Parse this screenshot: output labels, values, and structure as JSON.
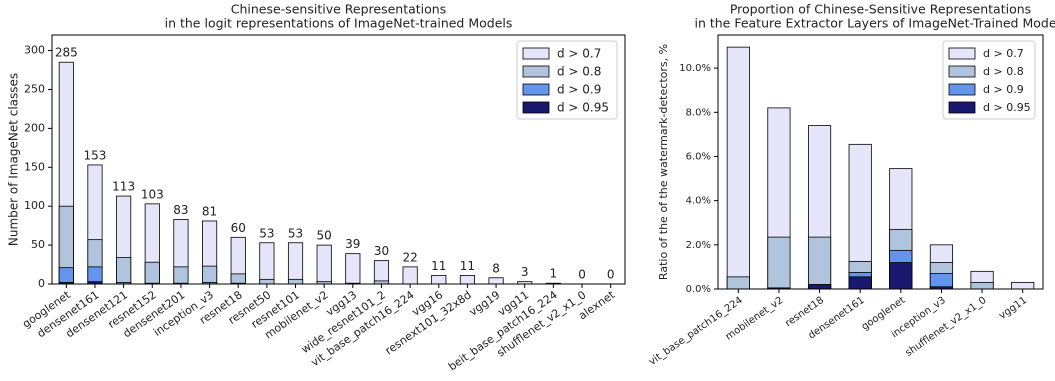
{
  "chart_data": [
    {
      "type": "bar",
      "title": [
        "Chinese-sensitive Representations",
        "in the logit representations of ImageNet-trained Models"
      ],
      "ylabel": "Number of ImageNet classes",
      "categories": [
        "googlenet",
        "densenet161",
        "densenet121",
        "resnet152",
        "densenet201",
        "inception_v3",
        "resnet18",
        "resnet50",
        "resnet101",
        "mobilenet_v2",
        "vgg13",
        "wide_resnet101_2",
        "vit_base_patch16_224",
        "vgg16",
        "resnext101_32x8d",
        "vgg19",
        "vgg11",
        "beit_base_patch16_224",
        "shufflenet_v2_x1_0",
        "alexnet"
      ],
      "series": [
        {
          "name": "d > 0.7",
          "color": "#e6e6fa",
          "values": [
            285,
            153,
            113,
            103,
            83,
            81,
            60,
            53,
            53,
            50,
            39,
            30,
            22,
            11,
            11,
            8,
            3,
            1,
            0,
            0
          ]
        },
        {
          "name": "d > 0.8",
          "color": "#b0c4de",
          "values": [
            100,
            57,
            34,
            28,
            22,
            23,
            13,
            6,
            6,
            3,
            1,
            4,
            0,
            0,
            0,
            0,
            0,
            0,
            0,
            0
          ]
        },
        {
          "name": "d > 0.9",
          "color": "#6495ed",
          "values": [
            21,
            22,
            2,
            1,
            1,
            2,
            1,
            0,
            0,
            0,
            0,
            0,
            0,
            0,
            0,
            0,
            0,
            0,
            0,
            0
          ]
        },
        {
          "name": "d > 0.95",
          "color": "#191970",
          "values": [
            2,
            3,
            0,
            0,
            0,
            0,
            0,
            0,
            0,
            0,
            0,
            0,
            0,
            0,
            0,
            0,
            0,
            0,
            0,
            0
          ]
        }
      ],
      "data_labels": true,
      "ylim": [
        0,
        320
      ],
      "yticks": [
        0,
        50,
        100,
        150,
        200,
        250,
        300
      ],
      "legend": "upper right"
    },
    {
      "type": "bar",
      "title": [
        "Proportion of Chinese-Sensitive Representations",
        "in the Feature Extractor Layers of ImageNet-Trained Models"
      ],
      "ylabel": "Ratio of the of the watermark-detectors, %",
      "categories": [
        "vit_base_patch16_224",
        "mobilenet_v2",
        "resnet18",
        "densenet161",
        "googlenet",
        "inception_v3",
        "shufflenet_v2_x1_0",
        "vgg11"
      ],
      "series": [
        {
          "name": "d > 0.7",
          "color": "#e6e6fa",
          "values": [
            10.95,
            8.2,
            7.4,
            6.55,
            5.45,
            2.0,
            0.8,
            0.3
          ]
        },
        {
          "name": "d > 0.8",
          "color": "#b0c4de",
          "values": [
            0.55,
            2.35,
            2.35,
            1.25,
            2.7,
            1.2,
            0.3,
            0
          ]
        },
        {
          "name": "d > 0.9",
          "color": "#6495ed",
          "values": [
            0,
            0.05,
            0.2,
            0.75,
            1.75,
            0.7,
            0,
            0
          ]
        },
        {
          "name": "d > 0.95",
          "color": "#191970",
          "values": [
            0,
            0.05,
            0.2,
            0.55,
            1.2,
            0.1,
            0,
            0
          ]
        }
      ],
      "data_labels": false,
      "ylim": [
        0,
        11.5
      ],
      "yticks": [
        {
          "value": 0,
          "label": "0.0%"
        },
        {
          "value": 2,
          "label": "2.0%"
        },
        {
          "value": 4,
          "label": "4.0%"
        },
        {
          "value": 6,
          "label": "6.0%"
        },
        {
          "value": 8,
          "label": "8.0%"
        },
        {
          "value": 10,
          "label": "10.0%"
        }
      ],
      "legend": "upper right"
    }
  ]
}
